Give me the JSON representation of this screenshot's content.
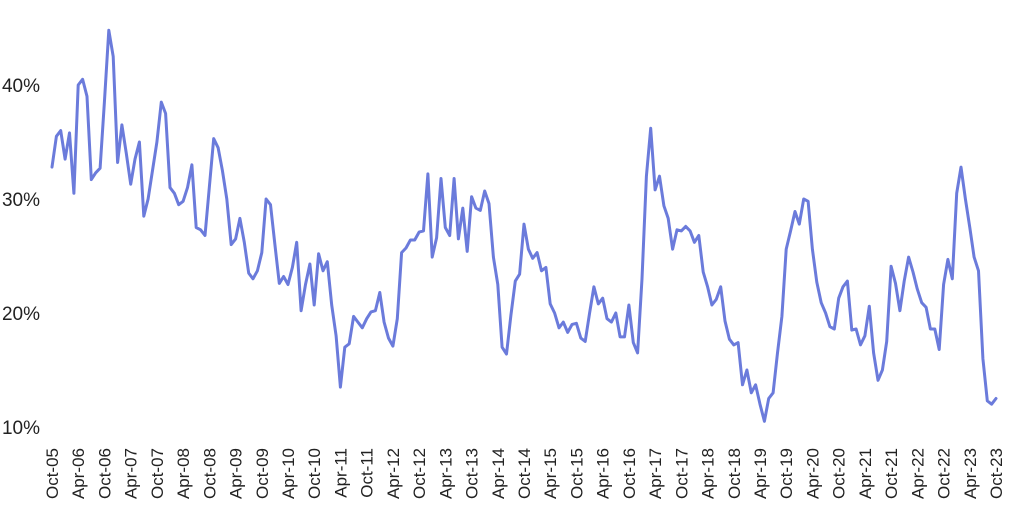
{
  "chart_data": {
    "type": "line",
    "title": "",
    "xlabel": "",
    "ylabel": "",
    "ylim": [
      0.1,
      0.45
    ],
    "yticks": [
      0.1,
      0.2,
      0.3,
      0.4
    ],
    "ytick_labels": [
      "10%",
      "20%",
      "30%",
      "40%"
    ],
    "grid": false,
    "colors": {
      "line": "#6b7bdb"
    },
    "xtick_labels": [
      "Oct-05",
      "Apr-06",
      "Oct-06",
      "Apr-07",
      "Oct-07",
      "Apr-08",
      "Oct-08",
      "Apr-09",
      "Oct-09",
      "Apr-10",
      "Oct-10",
      "Apr-11",
      "Oct-11",
      "Apr-12",
      "Oct-12",
      "Apr-13",
      "Oct-13",
      "Apr-14",
      "Oct-14",
      "Apr-15",
      "Oct-15",
      "Apr-16",
      "Oct-16",
      "Apr-17",
      "Oct-17",
      "Apr-18",
      "Oct-18",
      "Apr-19",
      "Oct-19",
      "Apr-20",
      "Oct-20",
      "Apr-21",
      "Oct-21",
      "Apr-22",
      "Oct-22",
      "Apr-23",
      "Oct-23"
    ],
    "series": [
      {
        "values": [
          0.328,
          0.355,
          0.36,
          0.335,
          0.358,
          0.305,
          0.4,
          0.405,
          0.39,
          0.317,
          0.323,
          0.327,
          0.385,
          0.448,
          0.425,
          0.332,
          0.365,
          0.34,
          0.313,
          0.335,
          0.35,
          0.285,
          0.3,
          0.325,
          0.35,
          0.385,
          0.375,
          0.31,
          0.305,
          0.295,
          0.298,
          0.31,
          0.33,
          0.275,
          0.273,
          0.268,
          0.31,
          0.353,
          0.345,
          0.325,
          0.3,
          0.26,
          0.265,
          0.283,
          0.262,
          0.235,
          0.23,
          0.237,
          0.253,
          0.3,
          0.295,
          0.26,
          0.226,
          0.232,
          0.225,
          0.24,
          0.262,
          0.202,
          0.225,
          0.243,
          0.207,
          0.252,
          0.237,
          0.245,
          0.207,
          0.18,
          0.135,
          0.17,
          0.173,
          0.197,
          0.192,
          0.187,
          0.195,
          0.201,
          0.202,
          0.218,
          0.192,
          0.178,
          0.171,
          0.195,
          0.253,
          0.257,
          0.264,
          0.264,
          0.271,
          0.272,
          0.322,
          0.249,
          0.266,
          0.318,
          0.275,
          0.268,
          0.318,
          0.265,
          0.292,
          0.254,
          0.302,
          0.292,
          0.29,
          0.307,
          0.296,
          0.249,
          0.225,
          0.17,
          0.164,
          0.198,
          0.228,
          0.234,
          0.278,
          0.256,
          0.248,
          0.253,
          0.237,
          0.24,
          0.208,
          0.2,
          0.187,
          0.192,
          0.183,
          0.19,
          0.191,
          0.178,
          0.175,
          0.2,
          0.223,
          0.208,
          0.213,
          0.195,
          0.192,
          0.2,
          0.179,
          0.179,
          0.207,
          0.174,
          0.165,
          0.23,
          0.32,
          0.362,
          0.308,
          0.32,
          0.294,
          0.283,
          0.256,
          0.273,
          0.272,
          0.276,
          0.272,
          0.262,
          0.268,
          0.236,
          0.223,
          0.207,
          0.212,
          0.223,
          0.193,
          0.177,
          0.172,
          0.174,
          0.137,
          0.15,
          0.13,
          0.137,
          0.12,
          0.105,
          0.125,
          0.13,
          0.165,
          0.197,
          0.256,
          0.272,
          0.289,
          0.278,
          0.3,
          0.298,
          0.256,
          0.227,
          0.209,
          0.2,
          0.188,
          0.186,
          0.213,
          0.223,
          0.228,
          0.185,
          0.186,
          0.172,
          0.18,
          0.206,
          0.165,
          0.141,
          0.15,
          0.175,
          0.241,
          0.226,
          0.202,
          0.228,
          0.249,
          0.236,
          0.221,
          0.209,
          0.205,
          0.186,
          0.186,
          0.168,
          0.225,
          0.247,
          0.23,
          0.305,
          0.328,
          0.3,
          0.275,
          0.249,
          0.237,
          0.16,
          0.123,
          0.12,
          0.125
        ]
      }
    ]
  }
}
